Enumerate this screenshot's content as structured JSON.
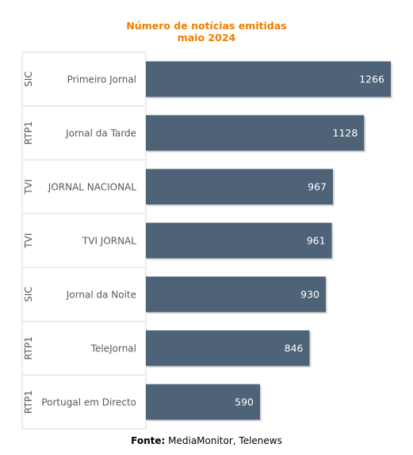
{
  "title": {
    "line1": "Número de notícias emitidas",
    "line2": "maio 2024"
  },
  "source": {
    "label": "Fonte:",
    "text": "MediaMonitor, Telenews"
  },
  "colors": {
    "bar": "#4e6278",
    "title": "#f07d00",
    "label_text": "#595959",
    "value_text": "#ffffff",
    "grid": "#d9d9d9"
  },
  "chart_data": {
    "type": "bar",
    "orientation": "horizontal",
    "title": "Número de notícias emitidas maio 2024",
    "categories": [
      {
        "channel": "SIC",
        "program": "Primeiro Jornal"
      },
      {
        "channel": "RTP1",
        "program": "Jornal da Tarde"
      },
      {
        "channel": "TVI",
        "program": "JORNAL NACIONAL"
      },
      {
        "channel": "TVI",
        "program": "TVI JORNAL"
      },
      {
        "channel": "SIC",
        "program": "Jornal da Noite"
      },
      {
        "channel": "RTP1",
        "program": "TeleJornal"
      },
      {
        "channel": "RTP1",
        "program": "Portugal em Directo"
      }
    ],
    "values": [
      1266,
      1128,
      967,
      961,
      930,
      846,
      590
    ],
    "xlim": [
      0,
      1300
    ],
    "data_labels": true,
    "grid": false,
    "legend": "none"
  }
}
